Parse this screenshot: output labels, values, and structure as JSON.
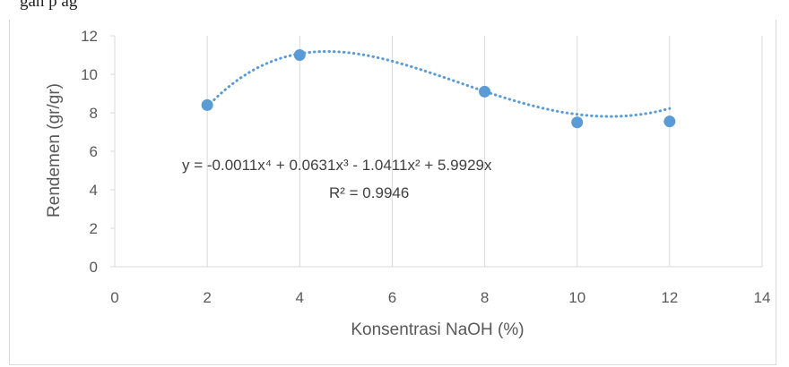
{
  "caption_fragment": "gan                                                                                   p                                                       ag",
  "chart_data": {
    "type": "scatter",
    "xlabel": "Konsentrasi NaOH (%)",
    "ylabel": "Rendemen (gr/gr)",
    "xlim": [
      0,
      14
    ],
    "ylim": [
      0,
      12
    ],
    "xticks": [
      0,
      2,
      4,
      6,
      8,
      10,
      12,
      14
    ],
    "yticks": [
      0,
      2,
      4,
      6,
      8,
      10,
      12
    ],
    "grid": "vertical",
    "x": [
      2,
      4,
      8,
      10,
      12
    ],
    "y": [
      8.4,
      11.0,
      9.1,
      7.5,
      7.55
    ],
    "trendline": {
      "type": "polynomial",
      "order": 4,
      "coefficients": [
        -0.0011,
        0.0631,
        -1.0411,
        5.9929,
        0
      ],
      "equation": "y = -0.0011x⁴ + 0.0631x³ - 1.0411x² + 5.9929x",
      "r_squared": "R² = 0.9946"
    },
    "colors": {
      "marker": "#5B9BD5",
      "grid": "#d9d9d9",
      "text": "#595959"
    }
  }
}
